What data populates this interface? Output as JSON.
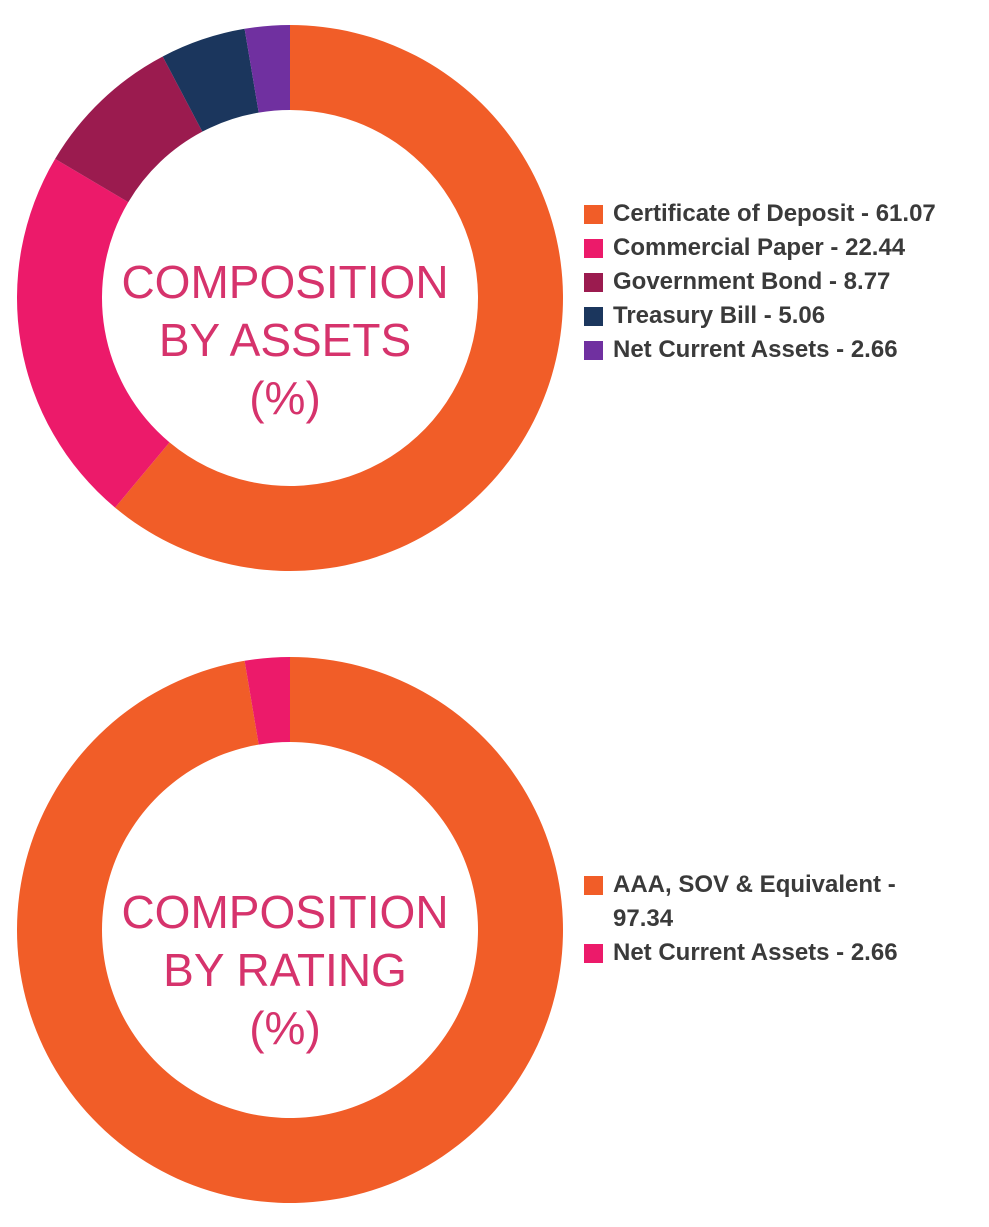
{
  "chart_data": [
    {
      "type": "pie",
      "donut": true,
      "center_label_lines": [
        "COMPOSITION",
        "BY ASSETS",
        "(%)"
      ],
      "categories": [
        "Certificate of Deposit",
        "Commercial Paper",
        "Government Bond",
        "Treasury Bill",
        "Net Current Assets"
      ],
      "values": [
        61.07,
        22.44,
        8.77,
        5.06,
        2.66
      ],
      "colors": [
        "#f15d28",
        "#ec1a6a",
        "#9b1b4f",
        "#1b365d",
        "#7030a0"
      ],
      "legend_labels": [
        "Certificate of Deposit - 61.07",
        "Commercial Paper - 22.44",
        "Government Bond - 8.77",
        "Treasury Bill - 5.06",
        "Net Current Assets - 2.66"
      ],
      "legend_position": "right",
      "start_angle_deg": 0,
      "direction": "clockwise"
    },
    {
      "type": "pie",
      "donut": true,
      "center_label_lines": [
        "COMPOSITION",
        "BY RATING",
        "(%)"
      ],
      "categories": [
        "AAA, SOV & Equivalent",
        "Net Current Assets"
      ],
      "values": [
        97.34,
        2.66
      ],
      "colors": [
        "#f15d28",
        "#ec1a6a"
      ],
      "legend_labels": [
        "AAA, SOV & Equivalent - 97.34",
        "Net Current Assets - 2.66"
      ],
      "legend_position": "right",
      "start_angle_deg": 0,
      "direction": "clockwise"
    }
  ]
}
